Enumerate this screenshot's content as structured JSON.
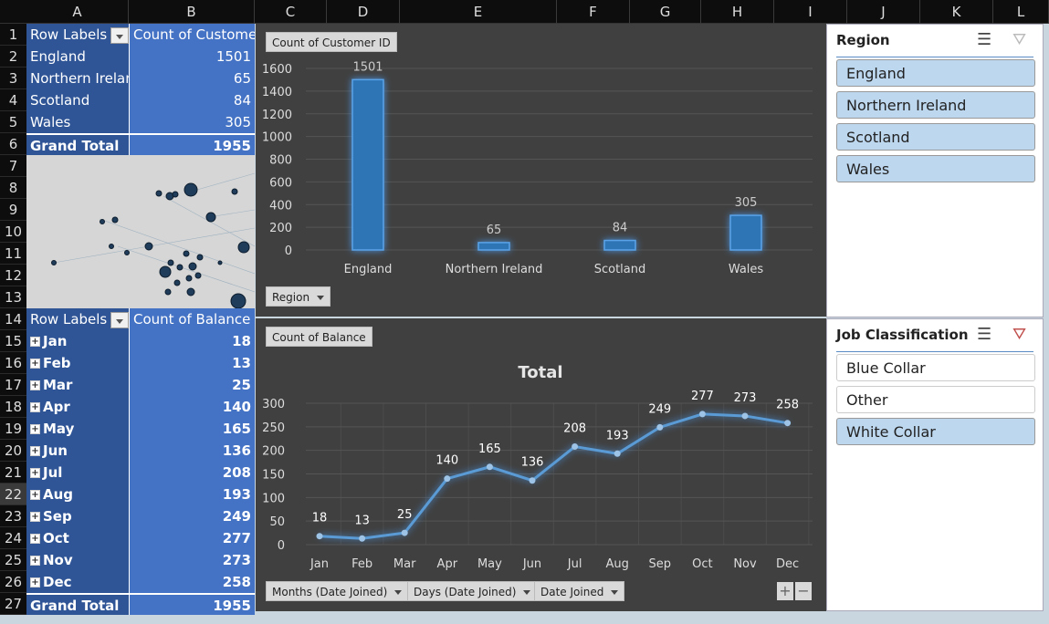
{
  "columns": [
    "A",
    "B",
    "C",
    "D",
    "E",
    "F",
    "G",
    "H",
    "I",
    "J",
    "K",
    "L"
  ],
  "rows": [
    "1",
    "2",
    "3",
    "4",
    "5",
    "6",
    "7",
    "8",
    "9",
    "10",
    "11",
    "12",
    "13",
    "14",
    "15",
    "16",
    "17",
    "18",
    "19",
    "20",
    "21",
    "22",
    "23",
    "24",
    "25",
    "26",
    "27"
  ],
  "pivot1": {
    "row_labels": "Row Labels",
    "value_header": "Count of Customer ID",
    "rows": [
      {
        "label": "England",
        "value": "1501"
      },
      {
        "label": "Northern Ireland",
        "value": "65"
      },
      {
        "label": "Scotland",
        "value": "84"
      },
      {
        "label": "Wales",
        "value": "305"
      }
    ],
    "total_label": "Grand Total",
    "total_value": "1955"
  },
  "pivot2": {
    "row_labels": "Row Labels",
    "value_header": "Count of Balance",
    "rows": [
      {
        "label": "Jan",
        "value": "18"
      },
      {
        "label": "Feb",
        "value": "13"
      },
      {
        "label": "Mar",
        "value": "25"
      },
      {
        "label": "Apr",
        "value": "140"
      },
      {
        "label": "May",
        "value": "165"
      },
      {
        "label": "Jun",
        "value": "136"
      },
      {
        "label": "Jul",
        "value": "208"
      },
      {
        "label": "Aug",
        "value": "193"
      },
      {
        "label": "Sep",
        "value": "249"
      },
      {
        "label": "Oct",
        "value": "277"
      },
      {
        "label": "Nov",
        "value": "273"
      },
      {
        "label": "Dec",
        "value": "258"
      }
    ],
    "total_label": "Grand Total",
    "total_value": "1955"
  },
  "chart1_buttons": {
    "value": "Count of Customer ID",
    "axis": "Region"
  },
  "chart2_buttons": {
    "value": "Count of Balance",
    "months": "Months (Date Joined)",
    "days": "Days (Date Joined)",
    "date": "Date Joined",
    "expand": "+",
    "collapse": "−"
  },
  "chart_data": [
    {
      "type": "bar",
      "title": "",
      "categories": [
        "England",
        "Northern Ireland",
        "Scotland",
        "Wales"
      ],
      "values": [
        1501,
        65,
        84,
        305
      ],
      "ylim": [
        0,
        1600
      ],
      "yticks": [
        0,
        200,
        400,
        600,
        800,
        1000,
        1200,
        1400,
        1600
      ],
      "grid": true,
      "xlabel": "",
      "ylabel": "",
      "color": "#2e75b6"
    },
    {
      "type": "line",
      "title": "Total",
      "categories": [
        "Jan",
        "Feb",
        "Mar",
        "Apr",
        "May",
        "Jun",
        "Jul",
        "Aug",
        "Sep",
        "Oct",
        "Nov",
        "Dec"
      ],
      "values": [
        18,
        13,
        25,
        140,
        165,
        136,
        208,
        193,
        249,
        277,
        273,
        258
      ],
      "ylim": [
        0,
        300
      ],
      "yticks": [
        0,
        50,
        100,
        150,
        200,
        250,
        300
      ],
      "grid": true,
      "xlabel": "",
      "ylabel": "",
      "color": "#5b9bd5"
    }
  ],
  "slicer_region": {
    "title": "Region",
    "items": [
      {
        "label": "England",
        "selected": true
      },
      {
        "label": "Northern Ireland",
        "selected": true
      },
      {
        "label": "Scotland",
        "selected": true
      },
      {
        "label": "Wales",
        "selected": true
      }
    ]
  },
  "slicer_job": {
    "title": "Job Classification",
    "items": [
      {
        "label": "Blue Collar",
        "selected": false
      },
      {
        "label": "Other",
        "selected": false
      },
      {
        "label": "White Collar",
        "selected": true
      }
    ]
  }
}
